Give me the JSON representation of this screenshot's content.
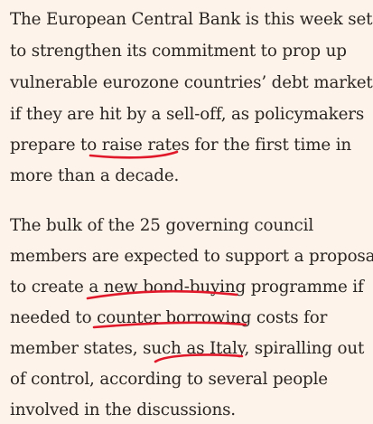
{
  "article": {
    "paragraphs": [
      {
        "lines": [
          "The European Central Bank is this week set",
          "to strengthen its commitment to prop up",
          "vulnerable eurozone countries’ debt markets",
          "if they are hit by a sell-off, as policymakers",
          "prepare to raise rates for the first time in",
          "more than a decade."
        ]
      },
      {
        "lines": [
          "The bulk of the 25 governing council",
          "members are expected to support a proposal",
          "to create a new bond-buying programme if",
          "needed to counter borrowing costs for",
          "member states, such as Italy, spiralling out",
          "of control, according to several people",
          "involved in the discussions."
        ]
      }
    ],
    "highlight_color": "#e0182a"
  }
}
